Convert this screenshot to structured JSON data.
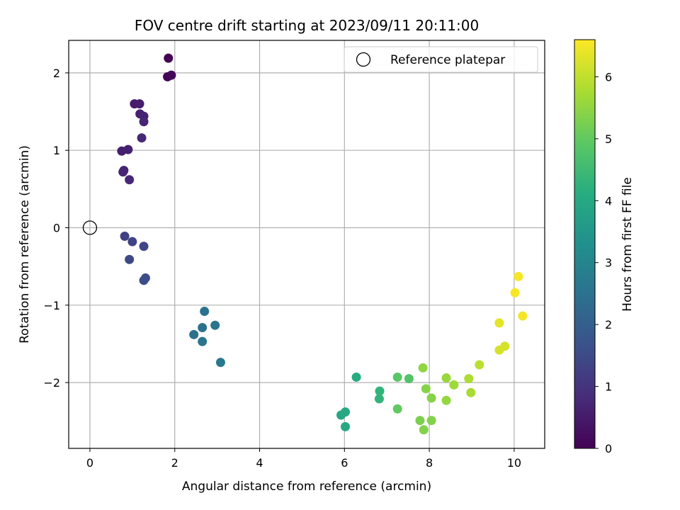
{
  "chart_data": {
    "type": "scatter",
    "title": "FOV centre drift starting at 2023/09/11 20:11:00",
    "xlabel": "Angular distance from reference (arcmin)",
    "ylabel": "Rotation from reference (arcmin)",
    "xlim": [
      -0.5,
      10.72
    ],
    "ylim": [
      -2.85,
      2.42
    ],
    "xticks": [
      0,
      2,
      4,
      6,
      8,
      10
    ],
    "yticks": [
      -2,
      -1,
      0,
      1,
      2
    ],
    "xtick_labels": [
      "0",
      "2",
      "4",
      "6",
      "8",
      "10"
    ],
    "ytick_labels": [
      "−2",
      "−1",
      "0",
      "1",
      "2"
    ],
    "grid": true,
    "legend_position": "top-right",
    "colormap": "viridis",
    "colorbar": {
      "label": "Hours from first FF file",
      "range": [
        0,
        6.6
      ],
      "ticks": [
        0,
        1,
        2,
        3,
        4,
        5,
        6
      ],
      "tick_labels": [
        "0",
        "1",
        "2",
        "3",
        "4",
        "5",
        "6"
      ]
    },
    "reference": {
      "label": "Reference platepar",
      "x": 0,
      "y": 0
    },
    "points": [
      {
        "x": 1.85,
        "y": 2.19,
        "h": 0.0
      },
      {
        "x": 1.83,
        "y": 1.95,
        "h": 0.05
      },
      {
        "x": 1.92,
        "y": 1.97,
        "h": 0.1
      },
      {
        "x": 1.05,
        "y": 1.6,
        "h": 0.5
      },
      {
        "x": 1.17,
        "y": 1.6,
        "h": 0.55
      },
      {
        "x": 1.18,
        "y": 1.47,
        "h": 0.6
      },
      {
        "x": 1.27,
        "y": 1.44,
        "h": 0.65
      },
      {
        "x": 1.27,
        "y": 1.37,
        "h": 0.7
      },
      {
        "x": 1.22,
        "y": 1.16,
        "h": 0.75
      },
      {
        "x": 0.75,
        "y": 0.99,
        "h": 0.55
      },
      {
        "x": 0.9,
        "y": 1.01,
        "h": 0.6
      },
      {
        "x": 0.8,
        "y": 0.74,
        "h": 0.65
      },
      {
        "x": 0.78,
        "y": 0.72,
        "h": 0.7
      },
      {
        "x": 0.93,
        "y": 0.62,
        "h": 0.75
      },
      {
        "x": 0.82,
        "y": -0.11,
        "h": 1.3
      },
      {
        "x": 1.0,
        "y": -0.18,
        "h": 1.35
      },
      {
        "x": 1.27,
        "y": -0.24,
        "h": 1.4
      },
      {
        "x": 0.93,
        "y": -0.41,
        "h": 1.45
      },
      {
        "x": 1.31,
        "y": -0.65,
        "h": 1.5
      },
      {
        "x": 1.27,
        "y": -0.68,
        "h": 1.55
      },
      {
        "x": 2.7,
        "y": -1.08,
        "h": 2.5
      },
      {
        "x": 2.95,
        "y": -1.26,
        "h": 2.55
      },
      {
        "x": 2.65,
        "y": -1.29,
        "h": 2.5
      },
      {
        "x": 2.45,
        "y": -1.38,
        "h": 2.45
      },
      {
        "x": 2.65,
        "y": -1.47,
        "h": 2.55
      },
      {
        "x": 3.08,
        "y": -1.74,
        "h": 2.7
      },
      {
        "x": 6.28,
        "y": -1.93,
        "h": 4.1
      },
      {
        "x": 6.83,
        "y": -2.11,
        "h": 4.3
      },
      {
        "x": 6.82,
        "y": -2.21,
        "h": 4.3
      },
      {
        "x": 5.92,
        "y": -2.42,
        "h": 3.95
      },
      {
        "x": 6.02,
        "y": -2.38,
        "h": 4.0
      },
      {
        "x": 6.02,
        "y": -2.57,
        "h": 4.0
      },
      {
        "x": 7.25,
        "y": -1.93,
        "h": 4.9
      },
      {
        "x": 7.52,
        "y": -1.95,
        "h": 4.8
      },
      {
        "x": 7.25,
        "y": -2.34,
        "h": 5.0
      },
      {
        "x": 7.85,
        "y": -1.81,
        "h": 5.5
      },
      {
        "x": 7.92,
        "y": -2.08,
        "h": 5.4
      },
      {
        "x": 8.05,
        "y": -2.2,
        "h": 5.4
      },
      {
        "x": 7.78,
        "y": -2.49,
        "h": 5.3
      },
      {
        "x": 8.05,
        "y": -2.49,
        "h": 5.35
      },
      {
        "x": 7.87,
        "y": -2.61,
        "h": 5.35
      },
      {
        "x": 8.4,
        "y": -1.94,
        "h": 5.6
      },
      {
        "x": 8.58,
        "y": -2.03,
        "h": 5.65
      },
      {
        "x": 8.4,
        "y": -2.23,
        "h": 5.55
      },
      {
        "x": 8.93,
        "y": -1.95,
        "h": 5.8
      },
      {
        "x": 8.98,
        "y": -2.13,
        "h": 5.75
      },
      {
        "x": 9.18,
        "y": -1.77,
        "h": 5.95
      },
      {
        "x": 9.65,
        "y": -1.23,
        "h": 6.35
      },
      {
        "x": 9.78,
        "y": -1.53,
        "h": 6.2
      },
      {
        "x": 9.65,
        "y": -1.58,
        "h": 6.2
      },
      {
        "x": 10.1,
        "y": -0.63,
        "h": 6.55
      },
      {
        "x": 10.02,
        "y": -0.84,
        "h": 6.55
      },
      {
        "x": 10.2,
        "y": -1.14,
        "h": 6.5
      }
    ]
  }
}
